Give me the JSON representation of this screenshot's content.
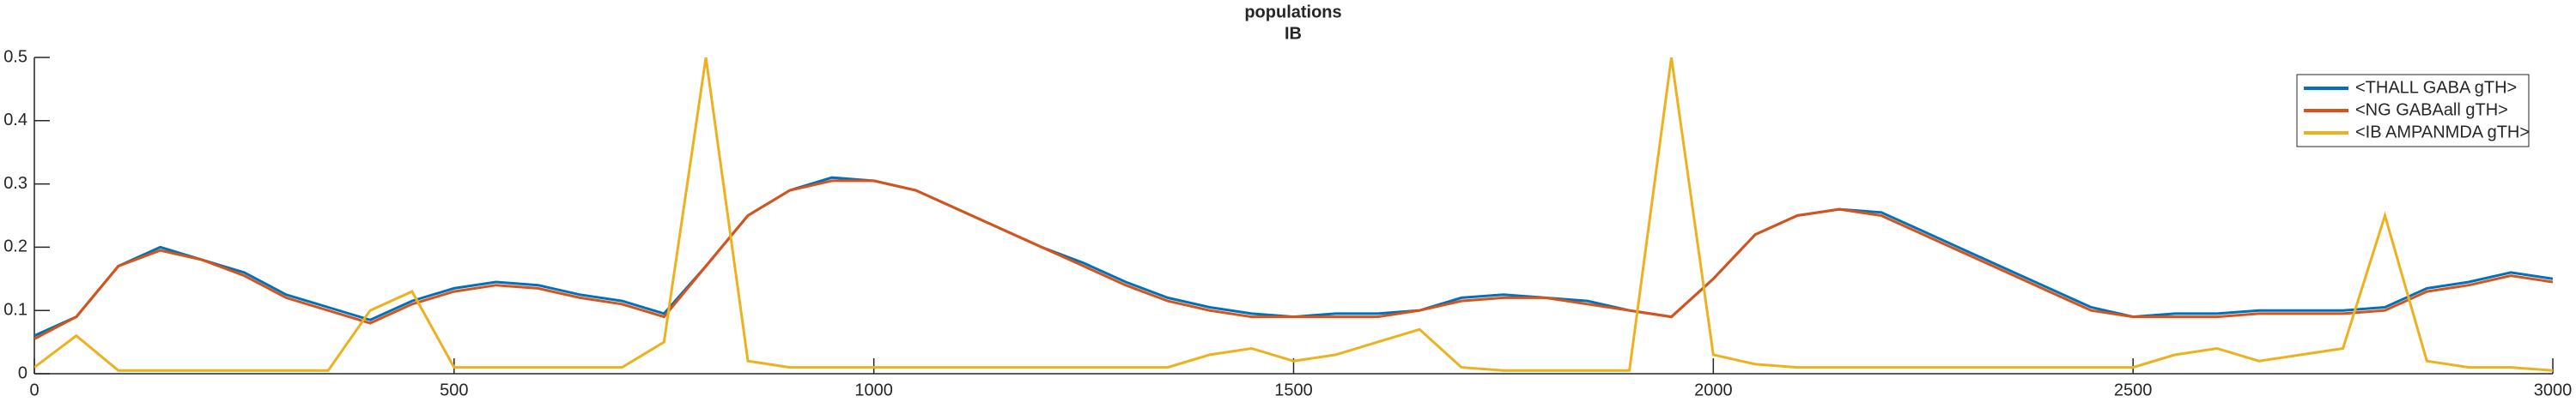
{
  "chart_data": {
    "type": "line",
    "title": "populations",
    "subtitle": "IB",
    "x": [
      0,
      50,
      100,
      150,
      200,
      250,
      300,
      350,
      400,
      450,
      500,
      550,
      600,
      650,
      700,
      750,
      800,
      850,
      900,
      950,
      1000,
      1050,
      1100,
      1150,
      1200,
      1250,
      1300,
      1350,
      1400,
      1450,
      1500,
      1550,
      1600,
      1650,
      1700,
      1750,
      1800,
      1850,
      1900,
      1950,
      2000,
      2050,
      2100,
      2150,
      2200,
      2250,
      2300,
      2350,
      2400,
      2450,
      2500,
      2550,
      2600,
      2650,
      2700,
      2750,
      2800,
      2850,
      2900,
      2950,
      3000
    ],
    "series": [
      {
        "name": "<THALL GABA gTH>",
        "color": "#0072bd",
        "values": [
          0.06,
          0.09,
          0.17,
          0.2,
          0.18,
          0.16,
          0.125,
          0.105,
          0.085,
          0.115,
          0.135,
          0.145,
          0.14,
          0.125,
          0.115,
          0.095,
          0.17,
          0.25,
          0.29,
          0.31,
          0.305,
          0.29,
          0.26,
          0.23,
          0.2,
          0.175,
          0.145,
          0.12,
          0.105,
          0.095,
          0.09,
          0.095,
          0.095,
          0.1,
          0.12,
          0.125,
          0.12,
          0.115,
          0.1,
          0.09,
          0.15,
          0.22,
          0.25,
          0.26,
          0.255,
          0.225,
          0.195,
          0.165,
          0.135,
          0.105,
          0.09,
          0.095,
          0.095,
          0.1,
          0.1,
          0.1,
          0.105,
          0.135,
          0.145,
          0.16,
          0.15
        ]
      },
      {
        "name": "<NG GABAall gTH>",
        "color": "#d95319",
        "values": [
          0.055,
          0.09,
          0.17,
          0.195,
          0.18,
          0.155,
          0.12,
          0.1,
          0.08,
          0.11,
          0.13,
          0.14,
          0.135,
          0.12,
          0.11,
          0.09,
          0.17,
          0.25,
          0.29,
          0.305,
          0.305,
          0.29,
          0.26,
          0.23,
          0.2,
          0.17,
          0.14,
          0.115,
          0.1,
          0.09,
          0.09,
          0.09,
          0.09,
          0.1,
          0.115,
          0.12,
          0.12,
          0.11,
          0.1,
          0.09,
          0.15,
          0.22,
          0.25,
          0.26,
          0.25,
          0.22,
          0.19,
          0.16,
          0.13,
          0.1,
          0.09,
          0.09,
          0.09,
          0.095,
          0.095,
          0.095,
          0.1,
          0.13,
          0.14,
          0.155,
          0.145
        ]
      },
      {
        "name": "<IB AMPANMDA gTH>",
        "color": "#edb120",
        "values": [
          0.01,
          0.06,
          0.005,
          0.005,
          0.005,
          0.005,
          0.005,
          0.005,
          0.1,
          0.13,
          0.01,
          0.01,
          0.01,
          0.01,
          0.01,
          0.05,
          0.5,
          0.02,
          0.01,
          0.01,
          0.01,
          0.01,
          0.01,
          0.01,
          0.01,
          0.01,
          0.01,
          0.01,
          0.03,
          0.04,
          0.02,
          0.03,
          0.05,
          0.07,
          0.01,
          0.005,
          0.005,
          0.005,
          0.005,
          0.5,
          0.03,
          0.015,
          0.01,
          0.01,
          0.01,
          0.01,
          0.01,
          0.01,
          0.01,
          0.01,
          0.01,
          0.03,
          0.04,
          0.02,
          0.03,
          0.04,
          0.25,
          0.02,
          0.01,
          0.01,
          0.005
        ]
      }
    ],
    "xlim": [
      0,
      3000
    ],
    "xticks": [
      0,
      500,
      1000,
      1500,
      2000,
      2500,
      3000
    ],
    "ylim": [
      0,
      0.5
    ],
    "yticks": [
      0,
      0.1,
      0.2,
      0.3,
      0.4,
      0.5
    ],
    "legend": "northeast"
  }
}
